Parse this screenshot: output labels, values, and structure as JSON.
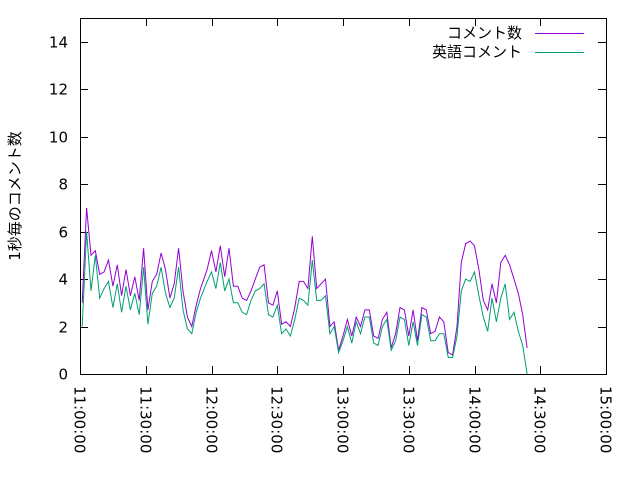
{
  "chart_data": {
    "type": "line",
    "title": "",
    "xlabel": "",
    "ylabel": "1秒毎のコメント数",
    "ylim": [
      0,
      15
    ],
    "xlim": [
      "11:00:00",
      "15:00:00"
    ],
    "yticks": [
      "0",
      "2",
      "4",
      "6",
      "8",
      "10",
      "12",
      "14"
    ],
    "xticks": [
      "11:00:00",
      "11:30:00",
      "12:00:00",
      "12:30:00",
      "13:00:00",
      "13:30:00",
      "14:00:00",
      "14:30:00",
      "15:00:00"
    ],
    "legend_position": "top-right",
    "grid": false,
    "series": [
      {
        "name": "コメント数",
        "color": "#9400d3",
        "points": [
          [
            "11:01:00",
            3.0
          ],
          [
            "11:03:00",
            7.0
          ],
          [
            "11:05:00",
            5.0
          ],
          [
            "11:07:00",
            5.2
          ],
          [
            "11:09:00",
            4.2
          ],
          [
            "11:11:00",
            4.3
          ],
          [
            "11:13:00",
            4.8
          ],
          [
            "11:15:00",
            3.7
          ],
          [
            "11:17:00",
            4.6
          ],
          [
            "11:19:00",
            3.3
          ],
          [
            "11:21:00",
            4.4
          ],
          [
            "11:23:00",
            3.3
          ],
          [
            "11:25:00",
            4.1
          ],
          [
            "11:27:00",
            3.1
          ],
          [
            "11:29:00",
            5.3
          ],
          [
            "11:31:00",
            2.7
          ],
          [
            "11:33:00",
            3.9
          ],
          [
            "11:35:00",
            4.2
          ],
          [
            "11:37:00",
            5.1
          ],
          [
            "11:39:00",
            4.4
          ],
          [
            "11:41:00",
            3.2
          ],
          [
            "11:43:00",
            3.8
          ],
          [
            "11:45:00",
            5.3
          ],
          [
            "11:47:00",
            3.5
          ],
          [
            "11:49:00",
            2.4
          ],
          [
            "11:51:00",
            2.0
          ],
          [
            "11:53:00",
            2.9
          ],
          [
            "11:55:00",
            3.6
          ],
          [
            "11:58:00",
            4.4
          ],
          [
            "12:00:00",
            5.2
          ],
          [
            "12:02:00",
            4.3
          ],
          [
            "12:04:00",
            5.4
          ],
          [
            "12:06:00",
            4.1
          ],
          [
            "12:08:00",
            5.3
          ],
          [
            "12:10:00",
            3.7
          ],
          [
            "12:12:00",
            3.7
          ],
          [
            "12:14:00",
            3.2
          ],
          [
            "12:16:00",
            3.1
          ],
          [
            "12:18:00",
            3.5
          ],
          [
            "12:20:00",
            4.0
          ],
          [
            "12:22:00",
            4.5
          ],
          [
            "12:24:00",
            4.6
          ],
          [
            "12:26:00",
            3.0
          ],
          [
            "12:28:00",
            2.9
          ],
          [
            "12:30:00",
            3.5
          ],
          [
            "12:32:00",
            2.1
          ],
          [
            "12:34:00",
            2.2
          ],
          [
            "12:36:00",
            2.0
          ],
          [
            "12:38:00",
            2.8
          ],
          [
            "12:40:00",
            3.9
          ],
          [
            "12:42:00",
            3.9
          ],
          [
            "12:44:00",
            3.6
          ],
          [
            "12:46:00",
            5.8
          ],
          [
            "12:48:00",
            3.6
          ],
          [
            "12:50:00",
            3.8
          ],
          [
            "12:52:00",
            4.0
          ],
          [
            "12:54:00",
            2.0
          ],
          [
            "12:56:00",
            2.2
          ],
          [
            "12:58:00",
            1.0
          ],
          [
            "13:00:00",
            1.6
          ],
          [
            "13:02:00",
            2.3
          ],
          [
            "13:04:00",
            1.6
          ],
          [
            "13:06:00",
            2.4
          ],
          [
            "13:08:00",
            2.0
          ],
          [
            "13:10:00",
            2.7
          ],
          [
            "13:12:00",
            2.7
          ],
          [
            "13:14:00",
            1.6
          ],
          [
            "13:16:00",
            1.5
          ],
          [
            "13:18:00",
            2.3
          ],
          [
            "13:20:00",
            2.6
          ],
          [
            "13:22:00",
            1.1
          ],
          [
            "13:24:00",
            1.7
          ],
          [
            "13:26:00",
            2.8
          ],
          [
            "13:28:00",
            2.7
          ],
          [
            "13:30:00",
            1.6
          ],
          [
            "13:32:00",
            2.7
          ],
          [
            "13:34:00",
            1.4
          ],
          [
            "13:36:00",
            2.8
          ],
          [
            "13:38:00",
            2.7
          ],
          [
            "13:40:00",
            1.7
          ],
          [
            "13:42:00",
            1.8
          ],
          [
            "13:44:00",
            2.4
          ],
          [
            "13:46:00",
            2.2
          ],
          [
            "13:48:00",
            0.9
          ],
          [
            "13:50:00",
            0.8
          ],
          [
            "13:52:00",
            2.0
          ],
          [
            "13:54:00",
            4.7
          ],
          [
            "13:56:00",
            5.5
          ],
          [
            "13:58:00",
            5.6
          ],
          [
            "14:00:00",
            5.4
          ],
          [
            "14:02:00",
            4.4
          ],
          [
            "14:04:00",
            3.1
          ],
          [
            "14:06:00",
            2.7
          ],
          [
            "14:08:00",
            3.8
          ],
          [
            "14:10:00",
            3.0
          ],
          [
            "14:12:00",
            4.7
          ],
          [
            "14:14:00",
            5.0
          ],
          [
            "14:16:00",
            4.6
          ],
          [
            "14:18:00",
            4.0
          ],
          [
            "14:20:00",
            3.4
          ],
          [
            "14:22:00",
            2.5
          ],
          [
            "14:24:00",
            1.1
          ]
        ]
      },
      {
        "name": "英語コメント",
        "color": "#009e73",
        "points": [
          [
            "11:01:00",
            2.0
          ],
          [
            "11:03:00",
            6.0
          ],
          [
            "11:05:00",
            3.5
          ],
          [
            "11:07:00",
            5.0
          ],
          [
            "11:09:00",
            3.2
          ],
          [
            "11:11:00",
            3.6
          ],
          [
            "11:13:00",
            3.9
          ],
          [
            "11:15:00",
            2.8
          ],
          [
            "11:17:00",
            3.8
          ],
          [
            "11:19:00",
            2.6
          ],
          [
            "11:21:00",
            3.7
          ],
          [
            "11:23:00",
            2.7
          ],
          [
            "11:25:00",
            3.4
          ],
          [
            "11:27:00",
            2.5
          ],
          [
            "11:29:00",
            4.5
          ],
          [
            "11:31:00",
            2.1
          ],
          [
            "11:33:00",
            3.4
          ],
          [
            "11:35:00",
            3.7
          ],
          [
            "11:37:00",
            4.5
          ],
          [
            "11:39:00",
            3.4
          ],
          [
            "11:41:00",
            2.8
          ],
          [
            "11:43:00",
            3.2
          ],
          [
            "11:45:00",
            4.5
          ],
          [
            "11:47:00",
            2.7
          ],
          [
            "11:49:00",
            1.9
          ],
          [
            "11:51:00",
            1.7
          ],
          [
            "11:53:00",
            2.6
          ],
          [
            "11:55:00",
            3.2
          ],
          [
            "11:58:00",
            3.9
          ],
          [
            "12:00:00",
            4.3
          ],
          [
            "12:02:00",
            3.6
          ],
          [
            "12:04:00",
            4.7
          ],
          [
            "12:06:00",
            3.5
          ],
          [
            "12:08:00",
            4.0
          ],
          [
            "12:10:00",
            3.0
          ],
          [
            "12:12:00",
            3.0
          ],
          [
            "12:14:00",
            2.6
          ],
          [
            "12:16:00",
            2.5
          ],
          [
            "12:18:00",
            3.1
          ],
          [
            "12:20:00",
            3.5
          ],
          [
            "12:22:00",
            3.6
          ],
          [
            "12:24:00",
            3.8
          ],
          [
            "12:26:00",
            2.5
          ],
          [
            "12:28:00",
            2.4
          ],
          [
            "12:30:00",
            2.9
          ],
          [
            "12:32:00",
            1.7
          ],
          [
            "12:34:00",
            1.9
          ],
          [
            "12:36:00",
            1.6
          ],
          [
            "12:38:00",
            2.3
          ],
          [
            "12:40:00",
            3.2
          ],
          [
            "12:42:00",
            3.1
          ],
          [
            "12:44:00",
            2.9
          ],
          [
            "12:46:00",
            4.8
          ],
          [
            "12:48:00",
            3.1
          ],
          [
            "12:50:00",
            3.1
          ],
          [
            "12:52:00",
            3.3
          ],
          [
            "12:54:00",
            1.7
          ],
          [
            "12:56:00",
            2.0
          ],
          [
            "12:58:00",
            0.9
          ],
          [
            "13:00:00",
            1.4
          ],
          [
            "13:02:00",
            2.0
          ],
          [
            "13:04:00",
            1.3
          ],
          [
            "13:06:00",
            2.2
          ],
          [
            "13:08:00",
            1.7
          ],
          [
            "13:10:00",
            2.4
          ],
          [
            "13:12:00",
            2.4
          ],
          [
            "13:14:00",
            1.3
          ],
          [
            "13:16:00",
            1.2
          ],
          [
            "13:18:00",
            2.0
          ],
          [
            "13:20:00",
            2.3
          ],
          [
            "13:22:00",
            1.0
          ],
          [
            "13:24:00",
            1.4
          ],
          [
            "13:26:00",
            2.4
          ],
          [
            "13:28:00",
            2.3
          ],
          [
            "13:30:00",
            1.2
          ],
          [
            "13:32:00",
            2.2
          ],
          [
            "13:34:00",
            1.2
          ],
          [
            "13:36:00",
            2.5
          ],
          [
            "13:38:00",
            2.4
          ],
          [
            "13:40:00",
            1.4
          ],
          [
            "13:42:00",
            1.4
          ],
          [
            "13:44:00",
            1.7
          ],
          [
            "13:46:00",
            1.7
          ],
          [
            "13:48:00",
            0.7
          ],
          [
            "13:50:00",
            0.7
          ],
          [
            "13:52:00",
            1.6
          ],
          [
            "13:54:00",
            3.5
          ],
          [
            "13:56:00",
            4.0
          ],
          [
            "13:58:00",
            3.9
          ],
          [
            "14:00:00",
            4.3
          ],
          [
            "14:02:00",
            3.3
          ],
          [
            "14:04:00",
            2.4
          ],
          [
            "14:06:00",
            1.8
          ],
          [
            "14:08:00",
            3.2
          ],
          [
            "14:10:00",
            2.2
          ],
          [
            "14:12:00",
            3.2
          ],
          [
            "14:14:00",
            3.8
          ],
          [
            "14:16:00",
            2.3
          ],
          [
            "14:18:00",
            2.6
          ],
          [
            "14:20:00",
            1.8
          ],
          [
            "14:22:00",
            1.2
          ],
          [
            "14:24:00",
            0.0
          ]
        ]
      }
    ]
  }
}
